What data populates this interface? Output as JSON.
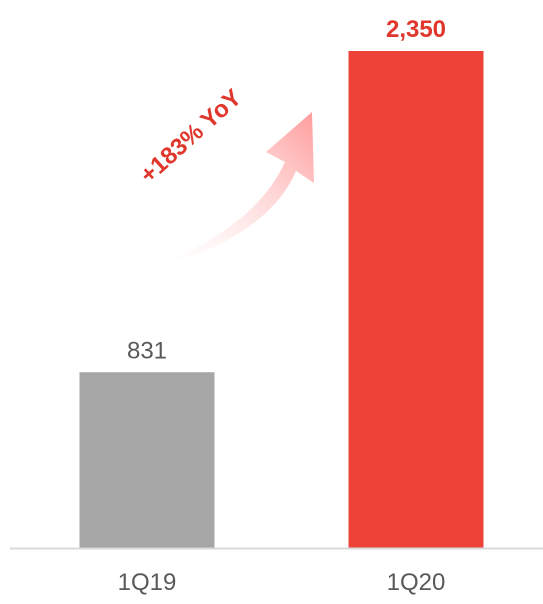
{
  "chart_data": {
    "type": "bar",
    "categories": [
      "1Q19",
      "1Q20"
    ],
    "values": [
      831,
      2350
    ],
    "value_labels": [
      "831",
      "2,350"
    ],
    "ylim": [
      0,
      2350
    ],
    "grid": false,
    "legend": "none",
    "colors": {
      "bars": [
        "#a6a6a6",
        "#ee4238"
      ],
      "value_labels": [
        "#595959",
        "#e0362c"
      ],
      "axis_line": "#d9d9d9",
      "tick_labels": "#595959",
      "annotation_text": "#e0362c",
      "arrow": "#ff9b9b"
    },
    "annotation": {
      "text": "+183% YoY",
      "icon": "curved-up-arrow"
    }
  }
}
